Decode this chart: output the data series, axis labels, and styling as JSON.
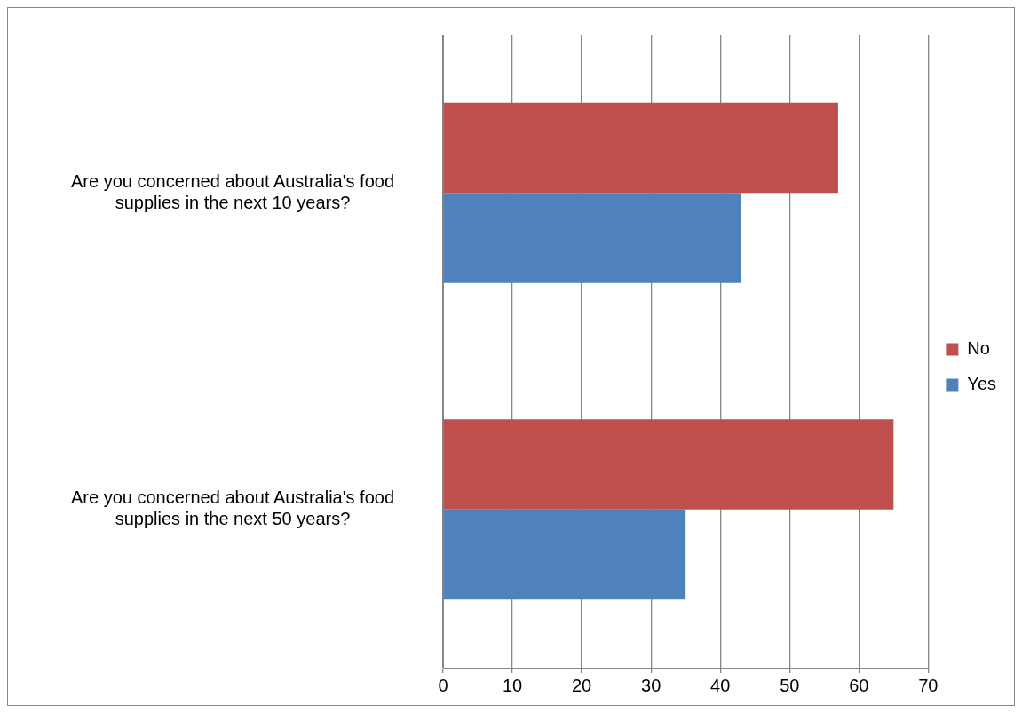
{
  "chart_data": {
    "type": "bar",
    "orientation": "horizontal",
    "categories": [
      "Are you concerned about Australia's food supplies in the next 10 years?",
      "Are you concerned about Australia's food supplies in the next 50 years?"
    ],
    "series": [
      {
        "name": "No",
        "color": "#c0504d",
        "values": [
          57,
          65
        ]
      },
      {
        "name": "Yes",
        "color": "#4f81bd",
        "values": [
          43,
          35
        ]
      }
    ],
    "xlim": [
      0,
      70
    ],
    "xticks": [
      0,
      10,
      20,
      30,
      40,
      50,
      60,
      70
    ],
    "grid": "x",
    "legend": "right"
  }
}
